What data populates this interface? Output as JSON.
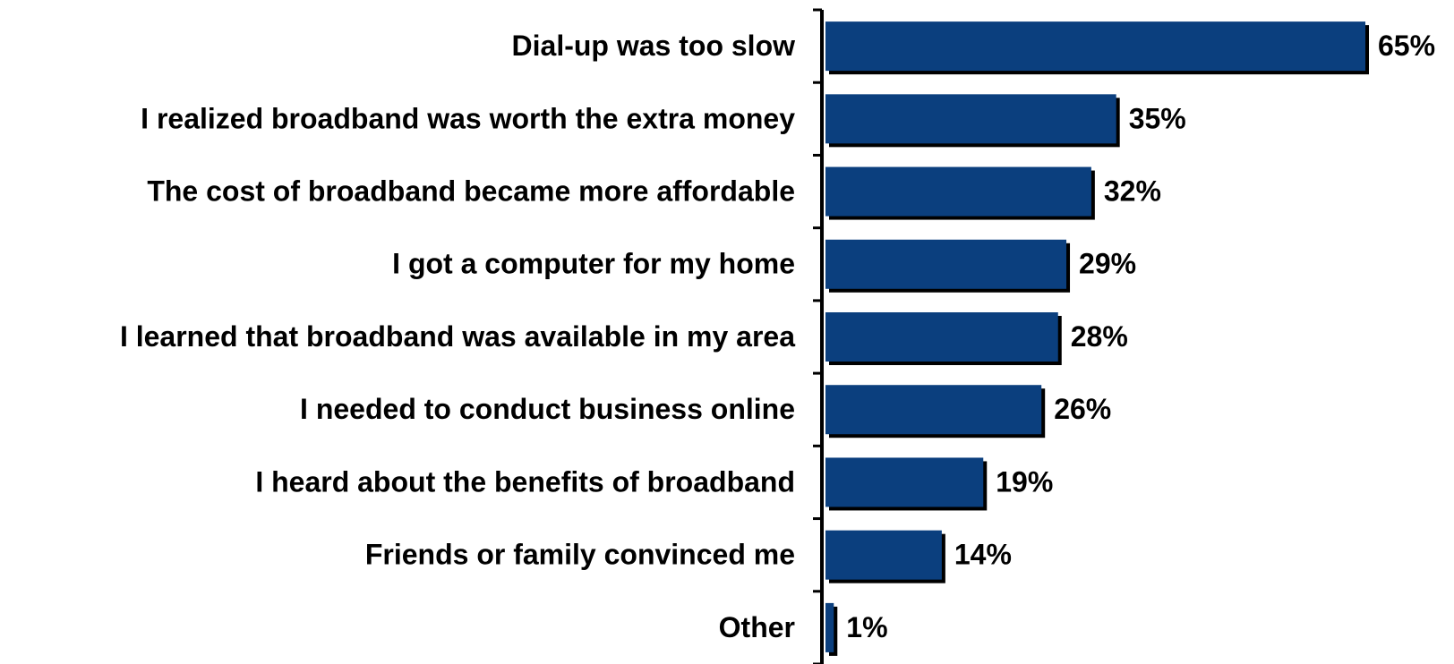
{
  "chart_data": {
    "type": "hbar",
    "categories": [
      "Dial-up was too slow",
      "I realized broadband was worth the extra money",
      "The cost of broadband became more affordable",
      "I got a computer for my home",
      "I learned that broadband was available in my area",
      "I needed to conduct business online",
      "I heard about the benefits of broadband",
      "Friends or family convinced me",
      "Other"
    ],
    "values": [
      65,
      35,
      32,
      29,
      28,
      26,
      19,
      14,
      1
    ],
    "value_labels": [
      "65%",
      "35%",
      "32%",
      "29%",
      "28%",
      "26%",
      "19%",
      "14%",
      "1%"
    ],
    "color": "#0b3f7e"
  }
}
